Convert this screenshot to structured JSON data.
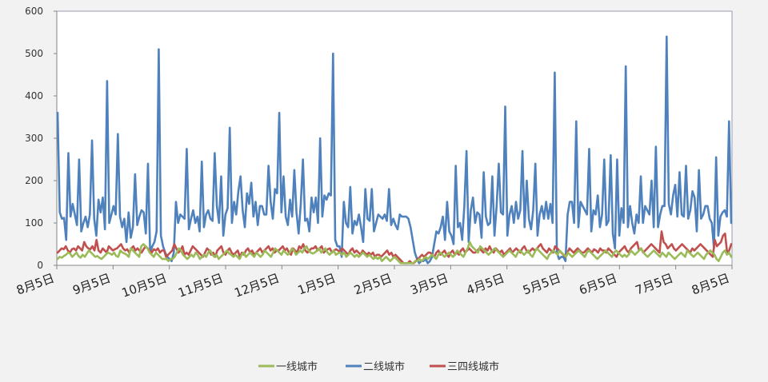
{
  "chart_data": {
    "type": "line",
    "title": "",
    "xlabel": "",
    "ylabel": "",
    "ylim": [
      0,
      600
    ],
    "yticks": [
      0,
      100,
      200,
      300,
      400,
      500,
      600
    ],
    "x_tick_labels": [
      "8月5日",
      "9月5日",
      "10月5日",
      "11月5日",
      "12月5日",
      "1月5日",
      "2月5日",
      "3月5日",
      "4月5日",
      "5月5日",
      "6月5日",
      "7月5日",
      "8月5日"
    ],
    "grid": false,
    "legend_position": "bottom",
    "series": [
      {
        "name": "二线城市",
        "color": "#4f81bd",
        "values": [
          360,
          125,
          110,
          112,
          60,
          265,
          115,
          145,
          120,
          95,
          250,
          80,
          100,
          115,
          90,
          120,
          295,
          110,
          70,
          155,
          125,
          160,
          85,
          435,
          100,
          120,
          140,
          120,
          310,
          115,
          90,
          110,
          55,
          125,
          65,
          90,
          215,
          95,
          115,
          130,
          125,
          75,
          240,
          30,
          45,
          55,
          80,
          510,
          70,
          45,
          30,
          20,
          15,
          10,
          30,
          150,
          100,
          120,
          115,
          110,
          275,
          85,
          110,
          130,
          100,
          115,
          80,
          245,
          90,
          120,
          130,
          110,
          105,
          265,
          140,
          100,
          210,
          70,
          120,
          135,
          325,
          100,
          150,
          120,
          175,
          210,
          130,
          90,
          170,
          145,
          195,
          115,
          150,
          95,
          140,
          140,
          120,
          120,
          235,
          150,
          110,
          180,
          170,
          360,
          125,
          210,
          115,
          95,
          155,
          115,
          225,
          125,
          75,
          145,
          250,
          105,
          110,
          80,
          160,
          125,
          160,
          100,
          300,
          115,
          165,
          155,
          170,
          165,
          500,
          60,
          45,
          45,
          20,
          150,
          100,
          90,
          185,
          75,
          105,
          95,
          120,
          90,
          55,
          180,
          110,
          105,
          180,
          80,
          100,
          120,
          115,
          110,
          120,
          105,
          180,
          95,
          110,
          95,
          85,
          120,
          115,
          115,
          115,
          110,
          90,
          60,
          30,
          15,
          5,
          10,
          10,
          15,
          5,
          10,
          20,
          50,
          80,
          75,
          90,
          115,
          60,
          150,
          80,
          70,
          50,
          235,
          90,
          100,
          60,
          140,
          270,
          55,
          130,
          160,
          100,
          125,
          120,
          65,
          220,
          115,
          95,
          100,
          210,
          70,
          140,
          240,
          125,
          120,
          375,
          70,
          120,
          140,
          100,
          150,
          110,
          130,
          270,
          90,
          200,
          110,
          85,
          130,
          240,
          70,
          120,
          140,
          110,
          150,
          110,
          145,
          100,
          455,
          30,
          15,
          20,
          20,
          10,
          120,
          150,
          150,
          100,
          340,
          90,
          150,
          140,
          130,
          120,
          275,
          80,
          130,
          120,
          165,
          90,
          120,
          250,
          95,
          105,
          260,
          75,
          40,
          250,
          70,
          135,
          100,
          470,
          90,
          140,
          100,
          75,
          120,
          100,
          210,
          100,
          140,
          130,
          120,
          200,
          90,
          280,
          90,
          120,
          140,
          140,
          540,
          145,
          120,
          165,
          190,
          115,
          220,
          120,
          115,
          235,
          110,
          130,
          175,
          160,
          80,
          225,
          110,
          120,
          140,
          140,
          110,
          100,
          40,
          255,
          70,
          115,
          125,
          130,
          115,
          340,
          100
        ]
      },
      {
        "name": "三四线城市",
        "color": "#c0504d",
        "values": [
          30,
          35,
          40,
          38,
          45,
          35,
          30,
          38,
          40,
          35,
          45,
          40,
          35,
          55,
          45,
          40,
          38,
          45,
          35,
          60,
          35,
          30,
          40,
          35,
          30,
          45,
          40,
          35,
          38,
          40,
          45,
          50,
          40,
          35,
          38,
          30,
          40,
          45,
          35,
          40,
          35,
          30,
          38,
          45,
          40,
          35,
          30,
          38,
          35,
          40,
          30,
          35,
          35,
          20,
          25,
          30,
          35,
          50,
          40,
          30,
          35,
          45,
          25,
          30,
          25,
          35,
          45,
          40,
          35,
          30,
          25,
          20,
          30,
          40,
          35,
          25,
          30,
          20,
          35,
          40,
          45,
          30,
          25,
          35,
          40,
          30,
          25,
          30,
          35,
          20,
          30,
          25,
          35,
          40,
          30,
          35,
          25,
          30,
          35,
          40,
          30,
          35,
          40,
          45,
          35,
          40,
          30,
          35,
          35,
          40,
          45,
          35,
          40,
          30,
          25,
          40,
          35,
          30,
          45,
          40,
          50,
          35,
          30,
          35,
          40,
          40,
          45,
          35,
          40,
          45,
          30,
          35,
          38,
          40,
          30,
          35,
          38,
          35,
          30,
          40,
          35,
          30,
          25,
          35,
          40,
          30,
          35,
          30,
          25,
          35,
          30,
          25,
          30,
          25,
          30,
          20,
          25,
          25,
          20,
          25,
          30,
          35,
          25,
          30,
          20,
          25,
          20,
          15,
          10,
          5,
          5,
          5,
          10,
          5,
          5,
          10,
          15,
          20,
          25,
          20,
          25,
          30,
          30,
          25,
          20,
          30,
          35,
          25,
          30,
          35,
          25,
          20,
          30,
          35,
          25,
          30,
          25,
          35,
          40,
          30,
          35,
          40,
          35,
          30,
          30,
          35,
          40,
          35,
          30,
          40,
          35,
          45,
          35,
          30,
          40,
          35,
          30,
          35,
          25,
          30,
          35,
          40,
          30,
          35,
          40,
          35,
          30,
          40,
          45,
          35,
          30,
          35,
          40,
          35,
          38,
          45,
          50,
          40,
          35,
          30,
          40,
          35,
          30,
          45,
          40,
          35,
          30,
          25,
          20,
          30,
          40,
          35,
          30,
          35,
          40,
          35,
          30,
          30,
          35,
          40,
          35,
          30,
          38,
          35,
          30,
          40,
          35,
          35,
          30,
          40,
          35,
          30,
          25,
          20,
          30,
          35,
          40,
          45,
          35,
          30,
          40,
          45,
          50,
          55,
          35,
          40,
          30,
          35,
          40,
          45,
          50,
          45,
          40,
          35,
          30,
          80,
          55,
          50,
          40,
          45,
          50,
          40,
          35,
          40,
          45,
          50,
          45,
          40,
          35,
          30,
          40,
          35,
          40,
          45,
          50,
          45,
          40,
          35,
          30,
          25,
          20,
          60,
          45,
          50,
          55,
          70,
          75,
          30,
          35,
          50
        ]
      },
      {
        "name": "一线城市",
        "color": "#9bbb59",
        "values": [
          15,
          20,
          18,
          22,
          25,
          30,
          28,
          20,
          25,
          30,
          22,
          18,
          25,
          20,
          28,
          35,
          30,
          25,
          20,
          22,
          18,
          15,
          20,
          25,
          30,
          28,
          25,
          30,
          22,
          20,
          35,
          30,
          28,
          25,
          20,
          40,
          35,
          30,
          25,
          20,
          45,
          50,
          45,
          40,
          30,
          25,
          20,
          30,
          25,
          20,
          15,
          15,
          15,
          10,
          15,
          15,
          20,
          30,
          40,
          35,
          25,
          20,
          15,
          20,
          25,
          20,
          30,
          25,
          15,
          20,
          25,
          20,
          30,
          35,
          25,
          20,
          25,
          15,
          20,
          25,
          30,
          35,
          28,
          25,
          20,
          25,
          20,
          15,
          25,
          30,
          20,
          25,
          30,
          25,
          20,
          30,
          25,
          20,
          25,
          35,
          30,
          25,
          20,
          30,
          40,
          35,
          30,
          25,
          35,
          30,
          25,
          30,
          40,
          35,
          25,
          30,
          35,
          30,
          40,
          45,
          35,
          30,
          28,
          30,
          35,
          40,
          30,
          35,
          40,
          30,
          25,
          30,
          35,
          25,
          28,
          30,
          25,
          30,
          20,
          25,
          30,
          25,
          20,
          25,
          20,
          25,
          30,
          25,
          20,
          25,
          20,
          15,
          20,
          15,
          20,
          10,
          15,
          20,
          15,
          10,
          15,
          20,
          15,
          10,
          5,
          5,
          5,
          5,
          5,
          5,
          5,
          10,
          10,
          15,
          10,
          15,
          20,
          15,
          20,
          25,
          20,
          15,
          25,
          30,
          25,
          20,
          25,
          30,
          25,
          20,
          25,
          35,
          30,
          25,
          20,
          30,
          40,
          55,
          45,
          40,
          35,
          30,
          45,
          40,
          35,
          30,
          25,
          30,
          35,
          40,
          35,
          30,
          25,
          20,
          25,
          30,
          35,
          30,
          25,
          20,
          30,
          35,
          30,
          25,
          30,
          35,
          25,
          20,
          30,
          40,
          35,
          30,
          25,
          20,
          15,
          25,
          30,
          35,
          30,
          25,
          35,
          30,
          25,
          20,
          30,
          25,
          20,
          25,
          30,
          35,
          30,
          25,
          20,
          30,
          35,
          30,
          25,
          20,
          15,
          20,
          25,
          30,
          35,
          30,
          25,
          20,
          30,
          35,
          30,
          25,
          20,
          25,
          20,
          25,
          35,
          30,
          25,
          30,
          35,
          40,
          30,
          25,
          20,
          25,
          30,
          35,
          30,
          25,
          20,
          30,
          25,
          20,
          30,
          25,
          20,
          15,
          20,
          25,
          30,
          25,
          20,
          35,
          30,
          25,
          20,
          25,
          30,
          25,
          20,
          15,
          25,
          30,
          35,
          30,
          25,
          15,
          10,
          20,
          30,
          35,
          25,
          30,
          20
        ]
      }
    ]
  },
  "legend": [
    {
      "label": "一线城市",
      "color": "#9bbb59"
    },
    {
      "label": "二线城市",
      "color": "#4f81bd"
    },
    {
      "label": "三四线城市",
      "color": "#c0504d"
    }
  ]
}
